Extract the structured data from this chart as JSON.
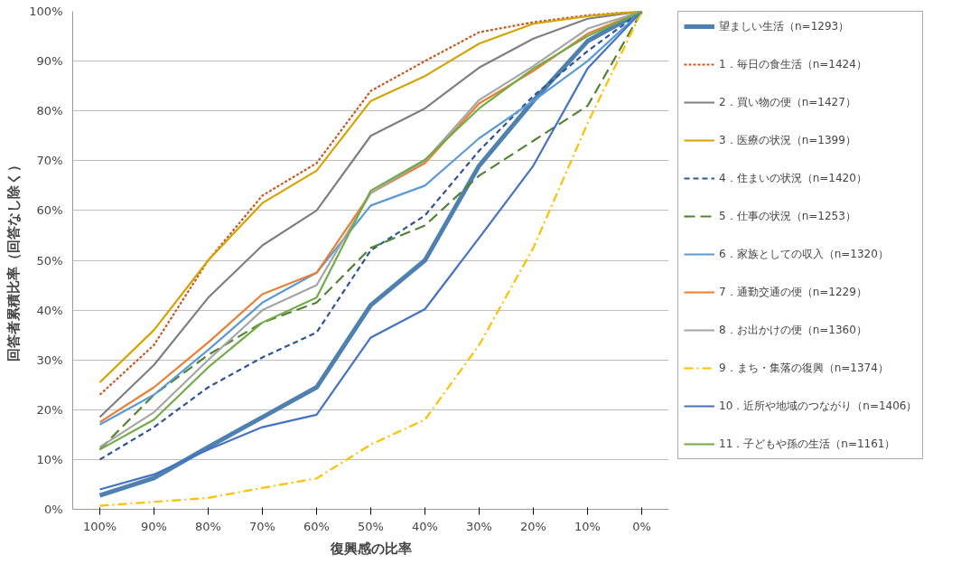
{
  "chart_data": {
    "type": "line",
    "xlabel": "復興感の比率",
    "ylabel": "回答者累積比率（回答なし除く）",
    "categories": [
      "100%",
      "90%",
      "80%",
      "70%",
      "60%",
      "50%",
      "40%",
      "30%",
      "20%",
      "10%",
      "0%"
    ],
    "ylim": [
      0,
      100
    ],
    "yticks": [
      {
        "value": 0,
        "label": "0%"
      },
      {
        "value": 10,
        "label": "10%"
      },
      {
        "value": 20,
        "label": "20%"
      },
      {
        "value": 30,
        "label": "30%"
      },
      {
        "value": 40,
        "label": "40%"
      },
      {
        "value": 50,
        "label": "50%"
      },
      {
        "value": 60,
        "label": "60%"
      },
      {
        "value": 70,
        "label": "70%"
      },
      {
        "value": 80,
        "label": "80%"
      },
      {
        "value": 90,
        "label": "90%"
      },
      {
        "value": 100,
        "label": "100%"
      }
    ],
    "grid": "y",
    "legend": "right",
    "marker": "none",
    "series": [
      {
        "name": "望ましい生活（n=1293）",
        "color": "#4f81b0",
        "line_style": "solid",
        "values": [
          2.8,
          6.3,
          12.5,
          18.5,
          24.5,
          41,
          50,
          69,
          82,
          94,
          100
        ]
      },
      {
        "name": "1．毎日の食生活（n=1424）",
        "color": "#c55a28",
        "line_style": "dotted",
        "values": [
          23,
          33,
          50,
          63,
          69.5,
          84,
          90,
          95.8,
          97.8,
          99.2,
          100
        ]
      },
      {
        "name": "2．買い物の便（n=1427）",
        "color": "#7f7f7f",
        "line_style": "solid",
        "values": [
          18.5,
          29,
          42.5,
          53,
          60,
          75,
          80.5,
          88.7,
          94.5,
          98.5,
          100
        ]
      },
      {
        "name": "3．医療の状況（n=1399）",
        "color": "#d6a300",
        "line_style": "solid",
        "values": [
          25.5,
          36,
          50,
          61.5,
          68,
          82,
          87,
          93.5,
          97.5,
          99,
          100
        ]
      },
      {
        "name": "4．住まいの状況（n=1420）",
        "color": "#2f5597",
        "line_style": "dashed",
        "values": [
          10,
          16.5,
          24.5,
          30.5,
          35.5,
          52,
          59,
          72,
          83,
          92,
          100
        ]
      },
      {
        "name": "5．仕事の状況（n=1253）",
        "color": "#548235",
        "line_style": "longdash",
        "values": [
          12,
          23,
          31,
          37.5,
          41.5,
          52.5,
          57,
          67,
          74,
          81,
          100
        ]
      },
      {
        "name": "6．家族としての収入（n=1320）",
        "color": "#5b9bd5",
        "line_style": "solid",
        "values": [
          17,
          23,
          32,
          41.5,
          47.5,
          61,
          65,
          74.5,
          82,
          90,
          100
        ]
      },
      {
        "name": "7．通勤交通の便（n=1229）",
        "color": "#ed7d31",
        "line_style": "solid",
        "values": [
          17.5,
          24.5,
          33.5,
          43.2,
          47.5,
          63.5,
          69.5,
          81.5,
          88,
          95.5,
          100
        ]
      },
      {
        "name": "8．お出かけの便（n=1360）",
        "color": "#a5a5a5",
        "line_style": "solid",
        "values": [
          12.5,
          19.5,
          30,
          40,
          45,
          63.5,
          70,
          82.2,
          89,
          96.5,
          100
        ]
      },
      {
        "name": "9．まち・集落の復興（n=1374）",
        "color": "#ffc000",
        "line_style": "dashdot",
        "values": [
          0.7,
          1.5,
          2.3,
          4.3,
          6.2,
          13,
          18,
          33,
          52.5,
          77.5,
          100
        ]
      },
      {
        "name": "10．近所や地域のつながり（n=1406）",
        "color": "#4472c4",
        "line_style": "solid",
        "values": [
          4,
          7,
          12,
          16.5,
          19,
          34.5,
          40.2,
          54.5,
          69,
          88.5,
          100
        ]
      },
      {
        "name": "11．子どもや孫の生活（n=1161）",
        "color": "#70ad47",
        "line_style": "solid",
        "values": [
          12,
          18,
          28.5,
          37.5,
          42.5,
          64,
          70.2,
          80.5,
          88.5,
          95,
          100
        ]
      }
    ]
  }
}
